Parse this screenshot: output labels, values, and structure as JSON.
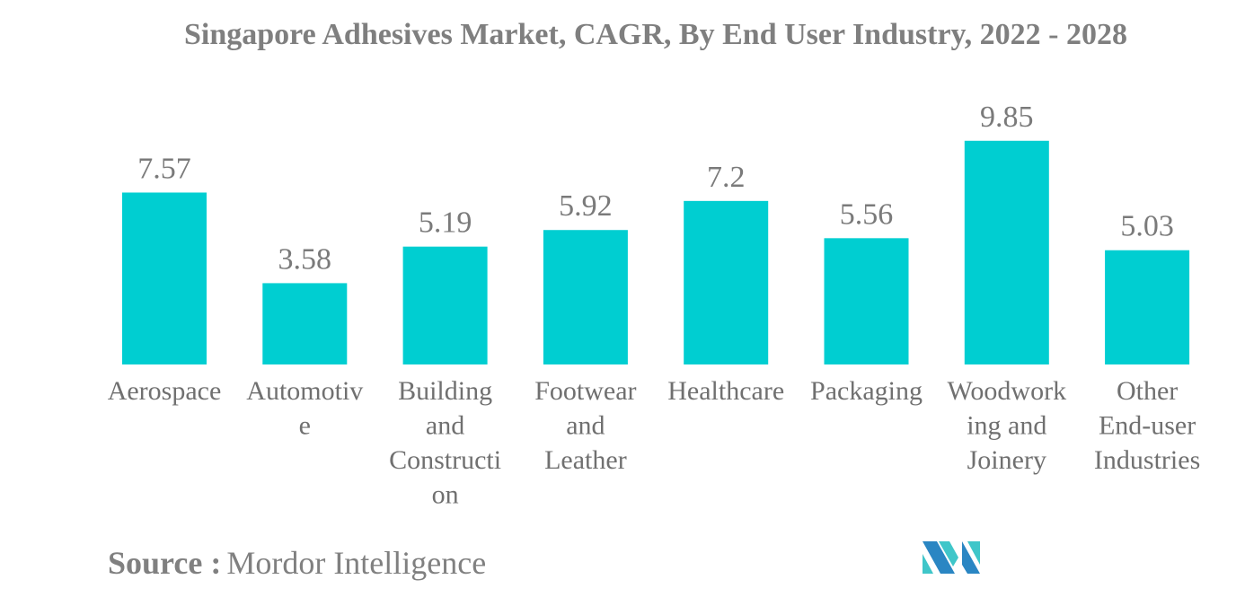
{
  "chart_data": {
    "type": "bar",
    "title": "Singapore Adhesives Market, CAGR, By End User Industry, 2022 - 2028",
    "categories": [
      "Aerospace",
      "Automotive",
      "Building and Construction",
      "Footwear and Leather",
      "Healthcare",
      "Packaging",
      "Woodworking and Joinery",
      "Other End-user Industries"
    ],
    "category_label_lines": [
      [
        "Aerospace"
      ],
      [
        "Automotiv",
        "e"
      ],
      [
        "Building",
        "and",
        "Constructi",
        "on"
      ],
      [
        "Footwear",
        "and",
        "Leather"
      ],
      [
        "Healthcare"
      ],
      [
        "Packaging"
      ],
      [
        "Woodwork",
        "ing and",
        "Joinery"
      ],
      [
        "Other",
        "End-user",
        "Industries"
      ]
    ],
    "values": [
      7.57,
      3.58,
      5.19,
      5.92,
      7.2,
      5.56,
      9.85,
      5.03
    ],
    "value_labels": [
      "7.57",
      "3.58",
      "5.19",
      "5.92",
      "7.2",
      "5.56",
      "9.85",
      "5.03"
    ],
    "xlabel": "",
    "ylabel": "",
    "ylim": [
      0,
      10
    ],
    "grid": false,
    "legend": "none",
    "bar_color": "#00ced1"
  },
  "source": {
    "label": "Source :",
    "value": "Mordor Intelligence"
  },
  "logo": {
    "name": "Mordor Intelligence logo",
    "colors": [
      "#2a86c3",
      "#3fc6c9"
    ]
  }
}
